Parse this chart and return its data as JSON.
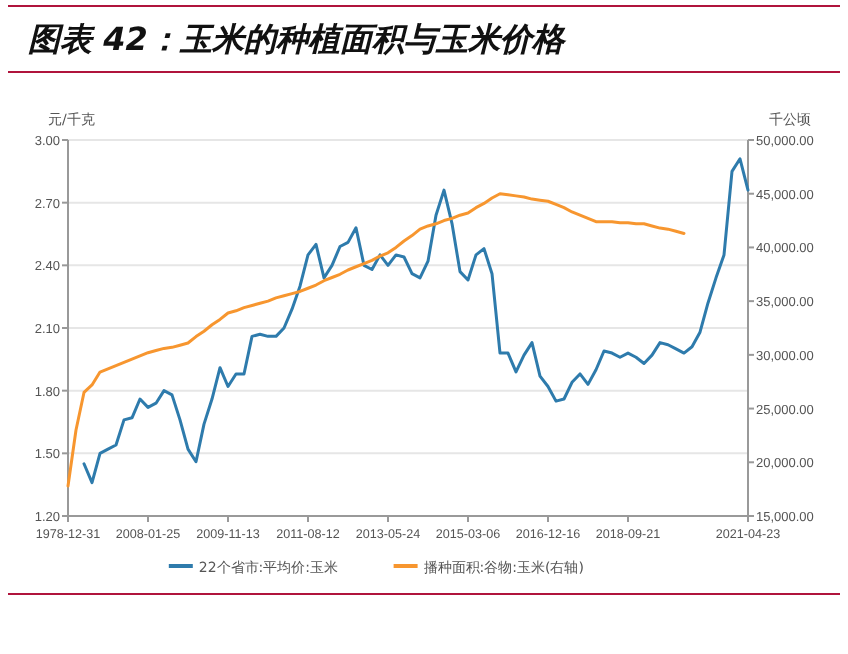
{
  "chart_data": {
    "type": "line",
    "title": "图表 42：玉米的种植面积与玉米价格",
    "ylabel": "元/千克",
    "y2label": "千公顷",
    "categories": [
      "1978-12-31",
      null,
      null,
      null,
      null,
      null,
      null,
      null,
      null,
      null,
      "2008-01-25",
      null,
      null,
      null,
      null,
      null,
      null,
      null,
      null,
      null,
      "2009-11-13",
      null,
      null,
      null,
      null,
      null,
      null,
      null,
      null,
      null,
      "2011-08-12",
      null,
      null,
      null,
      null,
      null,
      null,
      null,
      null,
      null,
      "2013-05-24",
      null,
      null,
      null,
      null,
      null,
      null,
      null,
      null,
      null,
      "2015-03-06",
      null,
      null,
      null,
      null,
      null,
      null,
      null,
      null,
      null,
      "2016-12-16",
      null,
      null,
      null,
      null,
      null,
      null,
      null,
      null,
      null,
      "2018-09-21",
      null,
      null,
      null,
      null,
      null,
      null,
      null,
      null,
      null,
      null,
      null,
      null,
      null,
      null,
      "2021-04-23"
    ],
    "ylim": [
      1.2,
      3.0
    ],
    "yticks": [
      {
        "value": 1.2,
        "label": "1.20"
      },
      {
        "value": 1.5,
        "label": "1.50"
      },
      {
        "value": 1.8,
        "label": "1.80"
      },
      {
        "value": 2.1,
        "label": "2.10"
      },
      {
        "value": 2.4,
        "label": "2.40"
      },
      {
        "value": 2.7,
        "label": "2.70"
      },
      {
        "value": 3.0,
        "label": "3.00"
      }
    ],
    "y2lim": [
      15000,
      50000
    ],
    "y2ticks": [
      {
        "value": 15000,
        "label": "15,000.00"
      },
      {
        "value": 20000,
        "label": "20,000.00"
      },
      {
        "value": 25000,
        "label": "25,000.00"
      },
      {
        "value": 30000,
        "label": "30,000.00"
      },
      {
        "value": 35000,
        "label": "35,000.00"
      },
      {
        "value": 40000,
        "label": "40,000.00"
      },
      {
        "value": 45000,
        "label": "45,000.00"
      },
      {
        "value": 50000,
        "label": "50,000.00"
      }
    ],
    "grid": "y",
    "legend": "bottom",
    "line_style": "solid",
    "series": [
      {
        "name": "22个省市:平均价:玉米",
        "color": "#2e7bac",
        "values": [
          null,
          null,
          1.45,
          1.36,
          1.5,
          1.52,
          1.54,
          1.66,
          1.67,
          1.76,
          1.72,
          1.74,
          1.8,
          1.78,
          1.66,
          1.52,
          1.46,
          1.64,
          1.76,
          1.91,
          1.82,
          1.88,
          1.88,
          2.06,
          2.07,
          2.06,
          2.06,
          2.1,
          2.19,
          2.3,
          2.45,
          2.5,
          2.34,
          2.4,
          2.49,
          2.51,
          2.58,
          2.4,
          2.38,
          2.45,
          2.4,
          2.45,
          2.44,
          2.36,
          2.34,
          2.42,
          2.64,
          2.76,
          2.6,
          2.37,
          2.33,
          2.45,
          2.48,
          2.36,
          1.98,
          1.98,
          1.89,
          1.97,
          2.03,
          1.87,
          1.82,
          1.75,
          1.76,
          1.84,
          1.88,
          1.83,
          1.9,
          1.99,
          1.98,
          1.96,
          1.98,
          1.96,
          1.93,
          1.97,
          2.03,
          2.02,
          2.0,
          1.98,
          2.01,
          2.08,
          2.22,
          2.34,
          2.45,
          2.85,
          2.91,
          2.76
        ]
      },
      {
        "name": "播种面积:谷物:玉米(右轴)",
        "color": "#f7962f",
        "axis": "y2",
        "values": [
          17800,
          23000,
          26500,
          27200,
          28400,
          28700,
          29000,
          29300,
          29600,
          29900,
          30200,
          30400,
          30600,
          30700,
          30900,
          31100,
          31700,
          32200,
          32800,
          33300,
          33900,
          34100,
          34400,
          34600,
          34800,
          35000,
          35300,
          35500,
          35700,
          35900,
          36200,
          36500,
          36900,
          37200,
          37500,
          37900,
          38200,
          38500,
          38800,
          39200,
          39500,
          40000,
          40600,
          41100,
          41700,
          42000,
          42200,
          42500,
          42700,
          43000,
          43200,
          43700,
          44100,
          44600,
          45000,
          44900,
          44800,
          44700,
          44500,
          44400,
          44300,
          44000,
          43700,
          43300,
          43000,
          42700,
          42400,
          42400,
          42400,
          42300,
          42300,
          42200,
          42200,
          42000,
          41800,
          41700,
          41500,
          41300,
          null,
          null,
          null,
          null,
          null,
          null,
          null,
          null
        ]
      }
    ]
  }
}
